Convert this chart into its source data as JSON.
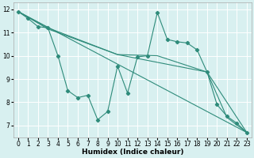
{
  "xlabel": "Humidex (Indice chaleur)",
  "bg_color": "#d8f0f0",
  "line_color": "#2e8b7a",
  "grid_color": "#ffffff",
  "xlim": [
    -0.5,
    23.5
  ],
  "ylim": [
    6.5,
    12.3
  ],
  "xticks": [
    0,
    1,
    2,
    3,
    4,
    5,
    6,
    7,
    8,
    9,
    10,
    11,
    12,
    13,
    14,
    15,
    16,
    17,
    18,
    19,
    20,
    21,
    22,
    23
  ],
  "yticks": [
    7,
    8,
    9,
    10,
    11,
    12
  ],
  "series": [
    {
      "x": [
        0,
        1,
        2,
        3,
        4,
        5,
        6,
        7,
        8,
        9,
        10,
        11,
        12,
        13,
        14,
        15,
        16,
        17,
        18,
        19,
        20,
        21,
        22,
        23
      ],
      "y": [
        11.9,
        11.6,
        11.25,
        11.2,
        10.0,
        8.5,
        8.2,
        8.3,
        7.25,
        7.6,
        9.55,
        8.4,
        9.95,
        10.0,
        11.85,
        10.7,
        10.6,
        10.55,
        10.25,
        9.3,
        7.9,
        7.4,
        7.1,
        6.7
      ],
      "markers": true
    },
    {
      "x": [
        0,
        23
      ],
      "y": [
        11.9,
        6.7
      ],
      "markers": false
    },
    {
      "comment": "line: 0->3->10->19->23",
      "x": [
        0,
        3,
        10,
        19,
        23
      ],
      "y": [
        11.9,
        11.15,
        10.05,
        9.3,
        6.7
      ],
      "markers": false
    },
    {
      "comment": "line: 0->3->10->14->19->21->23 upper envelope",
      "x": [
        0,
        3,
        10,
        14,
        19,
        21,
        23
      ],
      "y": [
        11.9,
        11.2,
        10.05,
        10.0,
        9.3,
        7.35,
        6.7
      ],
      "markers": false
    }
  ]
}
